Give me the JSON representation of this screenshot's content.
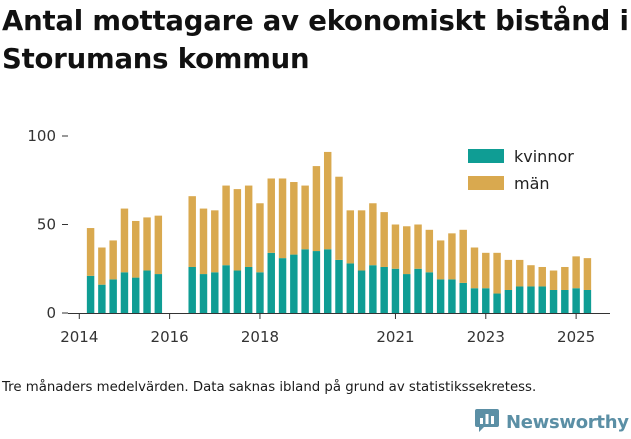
{
  "title": "Antal mottagare av ekonomiskt bistånd i Storumans kommun",
  "footnote": "Tre månaders medelvärden. Data saknas ibland på grund av statistikssekretess.",
  "brand": {
    "name": "Newsworthy",
    "color": "#5b8fa5",
    "icon": "newsworthy-logo-icon"
  },
  "colors": {
    "kvinnor": "#0f9d94",
    "man": "#d9a94f",
    "axis": "#333333",
    "grid": "#dddddd"
  },
  "chart_data": {
    "type": "bar",
    "stacked": true,
    "title": "Antal mottagare av ekonomiskt bistånd i Storumans kommun",
    "xlabel": "",
    "ylabel": "",
    "ylim": [
      0,
      100
    ],
    "yticks": [
      0,
      50,
      100
    ],
    "xlim": [
      2013.75,
      2025.75
    ],
    "xticks": [
      2014,
      2016,
      2018,
      2021,
      2023,
      2025
    ],
    "grid": false,
    "legend_position": "top-right",
    "x": [
      2014.25,
      2014.5,
      2014.75,
      2015.0,
      2015.25,
      2015.5,
      2015.75,
      2016.5,
      2016.75,
      2017.0,
      2017.25,
      2017.5,
      2017.75,
      2018.0,
      2018.25,
      2018.5,
      2018.75,
      2019.0,
      2019.25,
      2019.5,
      2019.75,
      2020.0,
      2020.25,
      2020.5,
      2020.75,
      2021.0,
      2021.25,
      2021.5,
      2021.75,
      2022.0,
      2022.25,
      2022.5,
      2022.75,
      2023.0,
      2023.25,
      2023.5,
      2023.75,
      2024.0,
      2024.25,
      2024.5,
      2024.75,
      2025.0,
      2025.25
    ],
    "series": [
      {
        "name": "kvinnor",
        "values": [
          21,
          16,
          19,
          23,
          20,
          24,
          22,
          26,
          22,
          23,
          27,
          24,
          26,
          23,
          34,
          31,
          33,
          36,
          35,
          36,
          30,
          28,
          24,
          27,
          26,
          25,
          22,
          25,
          23,
          19,
          19,
          17,
          14,
          14,
          11,
          13,
          15,
          15,
          15,
          13,
          13,
          14,
          13
        ]
      },
      {
        "name": "män",
        "values": [
          27,
          21,
          22,
          36,
          32,
          30,
          33,
          40,
          37,
          35,
          45,
          46,
          46,
          39,
          42,
          45,
          41,
          36,
          48,
          55,
          47,
          30,
          34,
          35,
          31,
          25,
          27,
          25,
          24,
          22,
          26,
          30,
          23,
          20,
          23,
          17,
          15,
          12,
          11,
          11,
          13,
          18,
          18
        ]
      }
    ]
  }
}
